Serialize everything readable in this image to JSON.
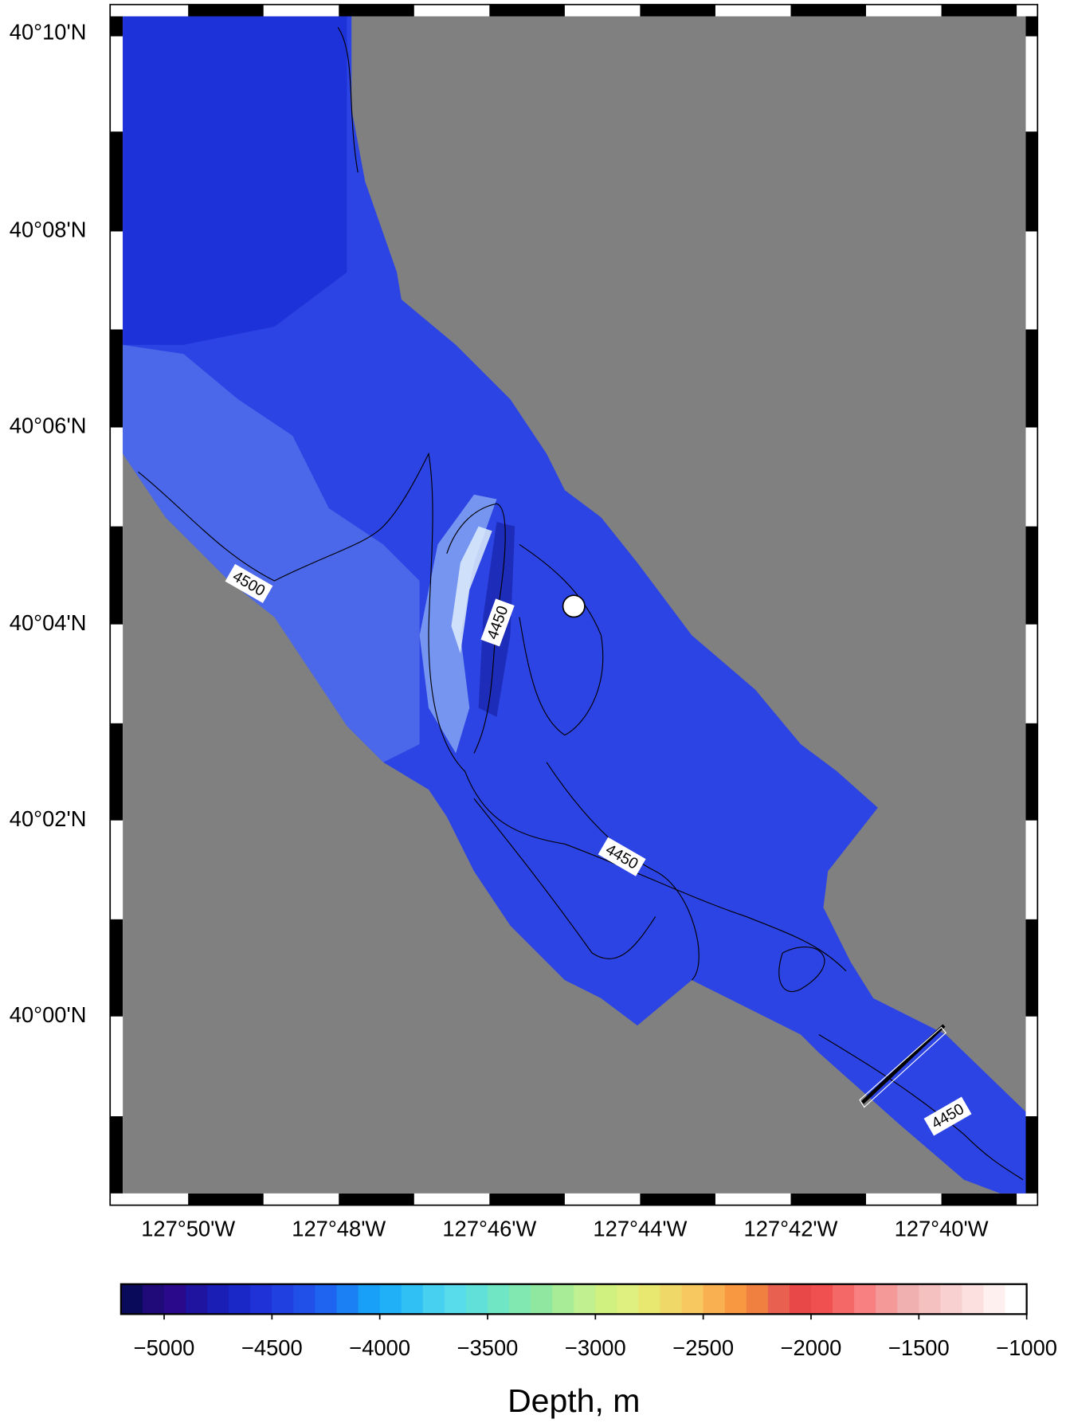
{
  "map": {
    "lat_labels": [
      "40°10'N",
      "40°08'N",
      "40°06'N",
      "40°04'N",
      "40°02'N",
      "40°00'N"
    ],
    "lon_labels": [
      "127°50'W",
      "127°48'W",
      "127°46'W",
      "127°44'W",
      "127°42'W",
      "127°40'W"
    ],
    "contour_labels": [
      "4500",
      "4450",
      "4450",
      "4450"
    ]
  },
  "colorbar": {
    "label": "Depth, m",
    "range": [
      -5200,
      -1000
    ],
    "ticks": [
      {
        "value": -5000,
        "label": "−5000"
      },
      {
        "value": -4500,
        "label": "−4500"
      },
      {
        "value": -4000,
        "label": "−4000"
      },
      {
        "value": -3500,
        "label": "−3500"
      },
      {
        "value": -3000,
        "label": "−3000"
      },
      {
        "value": -2500,
        "label": "−2500"
      },
      {
        "value": -2000,
        "label": "−2000"
      },
      {
        "value": -1500,
        "label": "−1500"
      },
      {
        "value": -1000,
        "label": "−1000"
      }
    ],
    "palette": [
      "#0a0a5a",
      "#200a7a",
      "#2a0a8a",
      "#1e14a0",
      "#1a1eb4",
      "#1a28c8",
      "#1e32d8",
      "#2040e0",
      "#2050e8",
      "#1e64f0",
      "#1a80f4",
      "#18a0f8",
      "#20b0f8",
      "#30c0f4",
      "#48d0f0",
      "#58dcec",
      "#60e0d8",
      "#70e6c4",
      "#80e8b0",
      "#90e8a0",
      "#a8ec98",
      "#c0f090",
      "#d0f080",
      "#e0f080",
      "#e8e870",
      "#f0d868",
      "#f8c860",
      "#f8b050",
      "#f89840",
      "#f08040",
      "#e86050",
      "#e84848",
      "#f05050",
      "#f46868",
      "#f88080",
      "#f49898",
      "#f0b0b0",
      "#f4c0c0",
      "#f8d0d0",
      "#fce0e0",
      "#fff0f0",
      "#ffffff"
    ]
  }
}
